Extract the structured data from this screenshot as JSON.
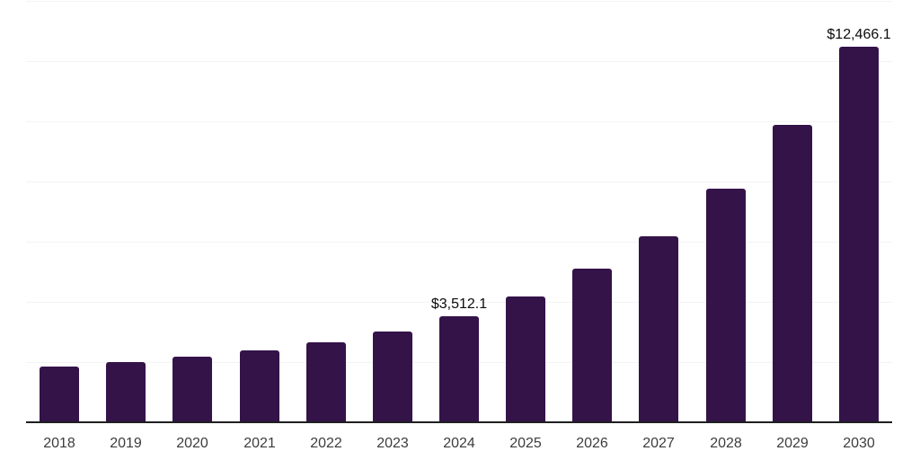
{
  "chart_data": {
    "type": "bar",
    "title": "",
    "xlabel": "",
    "ylabel": "",
    "categories": [
      "2018",
      "2019",
      "2020",
      "2021",
      "2022",
      "2023",
      "2024",
      "2025",
      "2026",
      "2027",
      "2028",
      "2029",
      "2030"
    ],
    "values": [
      1850,
      2000,
      2180,
      2390,
      2660,
      3020,
      3512.1,
      4180,
      5100,
      6190,
      7770,
      9870,
      12466.1
    ],
    "value_labels": [
      "",
      "",
      "",
      "",
      "",
      "",
      "$3,512.1",
      "",
      "",
      "",
      "",
      "",
      "$12,466.1"
    ],
    "ylim": [
      0,
      14000
    ],
    "grid_step": 2000,
    "grid": "horizontal-light",
    "legend_position": "none",
    "y_axis_tick_labels_visible": false,
    "colors": {
      "bar": "#341349",
      "axis_line": "#1f1f1f",
      "grid_line": "#f3f3f3",
      "tick_label": "#3d3d3d",
      "data_label": "#0a0a0a",
      "background": "#ffffff"
    }
  }
}
